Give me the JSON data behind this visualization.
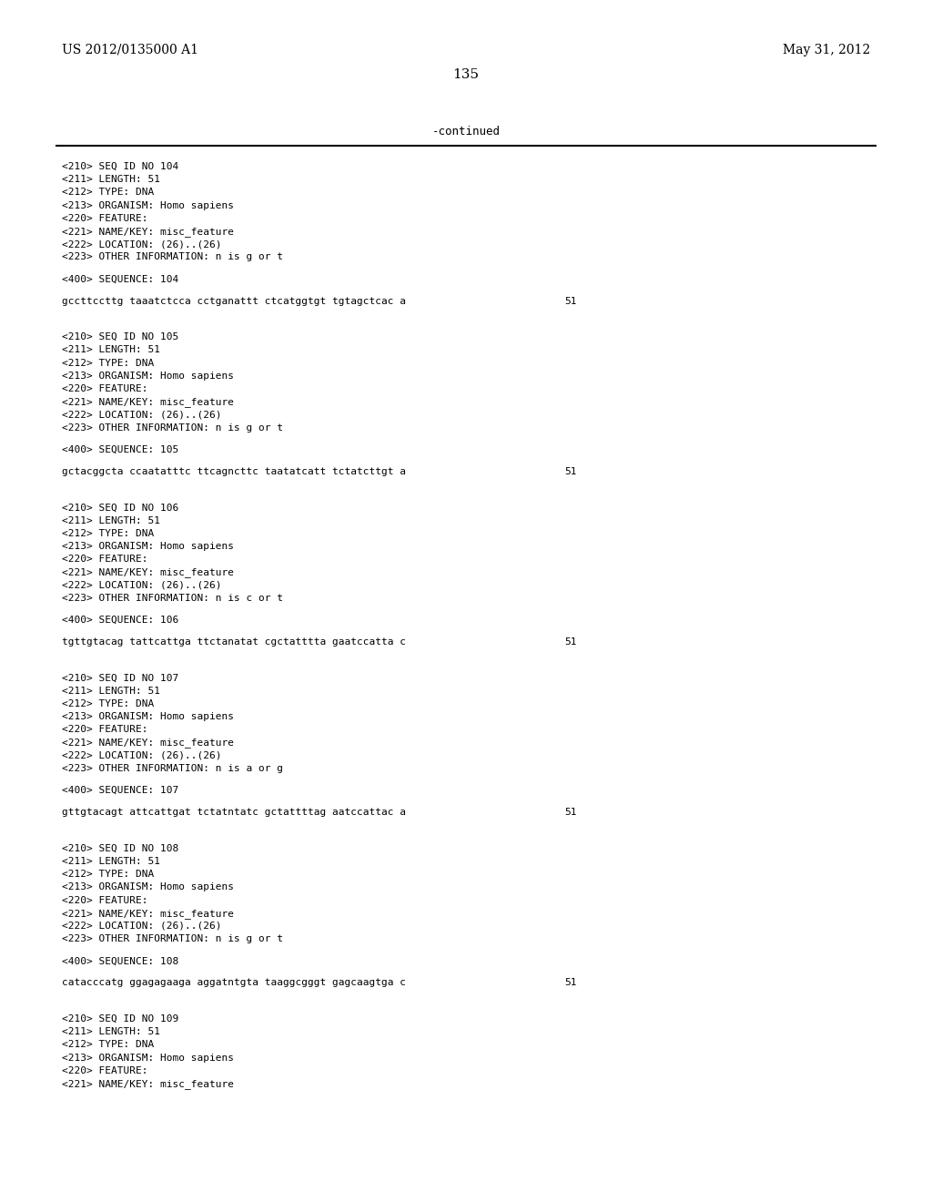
{
  "header_left": "US 2012/0135000 A1",
  "header_right": "May 31, 2012",
  "page_number": "135",
  "continued_text": "-continued",
  "background_color": "#ffffff",
  "text_color": "#000000",
  "font_size_header": 10.0,
  "font_size_body": 8.0,
  "font_size_page": 11.0,
  "sections": [
    {
      "lines": [
        "<210> SEQ ID NO 104",
        "<211> LENGTH: 51",
        "<212> TYPE: DNA",
        "<213> ORGANISM: Homo sapiens",
        "<220> FEATURE:",
        "<221> NAME/KEY: misc_feature",
        "<222> LOCATION: (26)..(26)",
        "<223> OTHER INFORMATION: n is g or t"
      ],
      "seq_label": "<400> SEQUENCE: 104",
      "sequence": "gccttccttg taaatctcca cctganattt ctcatggtgt tgtagctcac a",
      "seq_number": "51"
    },
    {
      "lines": [
        "<210> SEQ ID NO 105",
        "<211> LENGTH: 51",
        "<212> TYPE: DNA",
        "<213> ORGANISM: Homo sapiens",
        "<220> FEATURE:",
        "<221> NAME/KEY: misc_feature",
        "<222> LOCATION: (26)..(26)",
        "<223> OTHER INFORMATION: n is g or t"
      ],
      "seq_label": "<400> SEQUENCE: 105",
      "sequence": "gctacggcta ccaatatttc ttcagncttc taatatcatt tctatcttgt a",
      "seq_number": "51"
    },
    {
      "lines": [
        "<210> SEQ ID NO 106",
        "<211> LENGTH: 51",
        "<212> TYPE: DNA",
        "<213> ORGANISM: Homo sapiens",
        "<220> FEATURE:",
        "<221> NAME/KEY: misc_feature",
        "<222> LOCATION: (26)..(26)",
        "<223> OTHER INFORMATION: n is c or t"
      ],
      "seq_label": "<400> SEQUENCE: 106",
      "sequence": "tgttgtacag tattcattga ttctanatat cgctatttta gaatccatta c",
      "seq_number": "51"
    },
    {
      "lines": [
        "<210> SEQ ID NO 107",
        "<211> LENGTH: 51",
        "<212> TYPE: DNA",
        "<213> ORGANISM: Homo sapiens",
        "<220> FEATURE:",
        "<221> NAME/KEY: misc_feature",
        "<222> LOCATION: (26)..(26)",
        "<223> OTHER INFORMATION: n is a or g"
      ],
      "seq_label": "<400> SEQUENCE: 107",
      "sequence": "gttgtacagt attcattgat tctatntatc gctattttag aatccattac a",
      "seq_number": "51"
    },
    {
      "lines": [
        "<210> SEQ ID NO 108",
        "<211> LENGTH: 51",
        "<212> TYPE: DNA",
        "<213> ORGANISM: Homo sapiens",
        "<220> FEATURE:",
        "<221> NAME/KEY: misc_feature",
        "<222> LOCATION: (26)..(26)",
        "<223> OTHER INFORMATION: n is g or t"
      ],
      "seq_label": "<400> SEQUENCE: 108",
      "sequence": "catacccatg ggagagaaga aggatntgta taaggcgggt gagcaagtga c",
      "seq_number": "51"
    },
    {
      "lines": [
        "<210> SEQ ID NO 109",
        "<211> LENGTH: 51",
        "<212> TYPE: DNA",
        "<213> ORGANISM: Homo sapiens",
        "<220> FEATURE:",
        "<221> NAME/KEY: misc_feature"
      ],
      "seq_label": "",
      "sequence": "",
      "seq_number": ""
    }
  ]
}
